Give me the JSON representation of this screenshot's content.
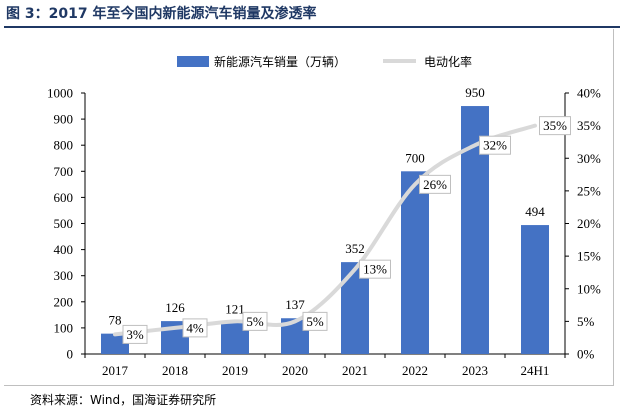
{
  "figure": {
    "title": "图 3：2017 年至今国内新能源汽车销量及渗透率",
    "source": "资料来源：Wind，国海证券研究所"
  },
  "chart_data": {
    "type": "bar",
    "categories": [
      "2017",
      "2018",
      "2019",
      "2020",
      "2021",
      "2022",
      "2023",
      "24H1"
    ],
    "series": [
      {
        "name": "新能源汽车销量（万辆）",
        "type": "bar",
        "axis": "left",
        "color": "#4472c4",
        "values": [
          78,
          126,
          121,
          137,
          352,
          700,
          950,
          494
        ],
        "labels": [
          "78",
          "126",
          "121",
          "137",
          "352",
          "700",
          "950",
          "494"
        ]
      },
      {
        "name": "电动化率",
        "type": "line",
        "axis": "right",
        "color": "#d9d9d9",
        "values": [
          3,
          4,
          5,
          5,
          13,
          26,
          32,
          35
        ],
        "labels": [
          "3%",
          "4%",
          "5%",
          "5%",
          "13%",
          "26%",
          "32%",
          "35%"
        ]
      }
    ],
    "y_left": {
      "min": 0,
      "max": 1000,
      "ticks": [
        0,
        100,
        200,
        300,
        400,
        500,
        600,
        700,
        800,
        900,
        1000
      ],
      "tick_labels": [
        "0",
        "100",
        "200",
        "300",
        "400",
        "500",
        "600",
        "700",
        "800",
        "900",
        "1000"
      ]
    },
    "y_right": {
      "min": 0,
      "max": 40,
      "ticks": [
        0,
        5,
        10,
        15,
        20,
        25,
        30,
        35,
        40
      ],
      "tick_labels": [
        "0%",
        "5%",
        "10%",
        "15%",
        "20%",
        "25%",
        "30%",
        "35%",
        "40%"
      ]
    },
    "legend_position": "top-center",
    "grid": false
  }
}
